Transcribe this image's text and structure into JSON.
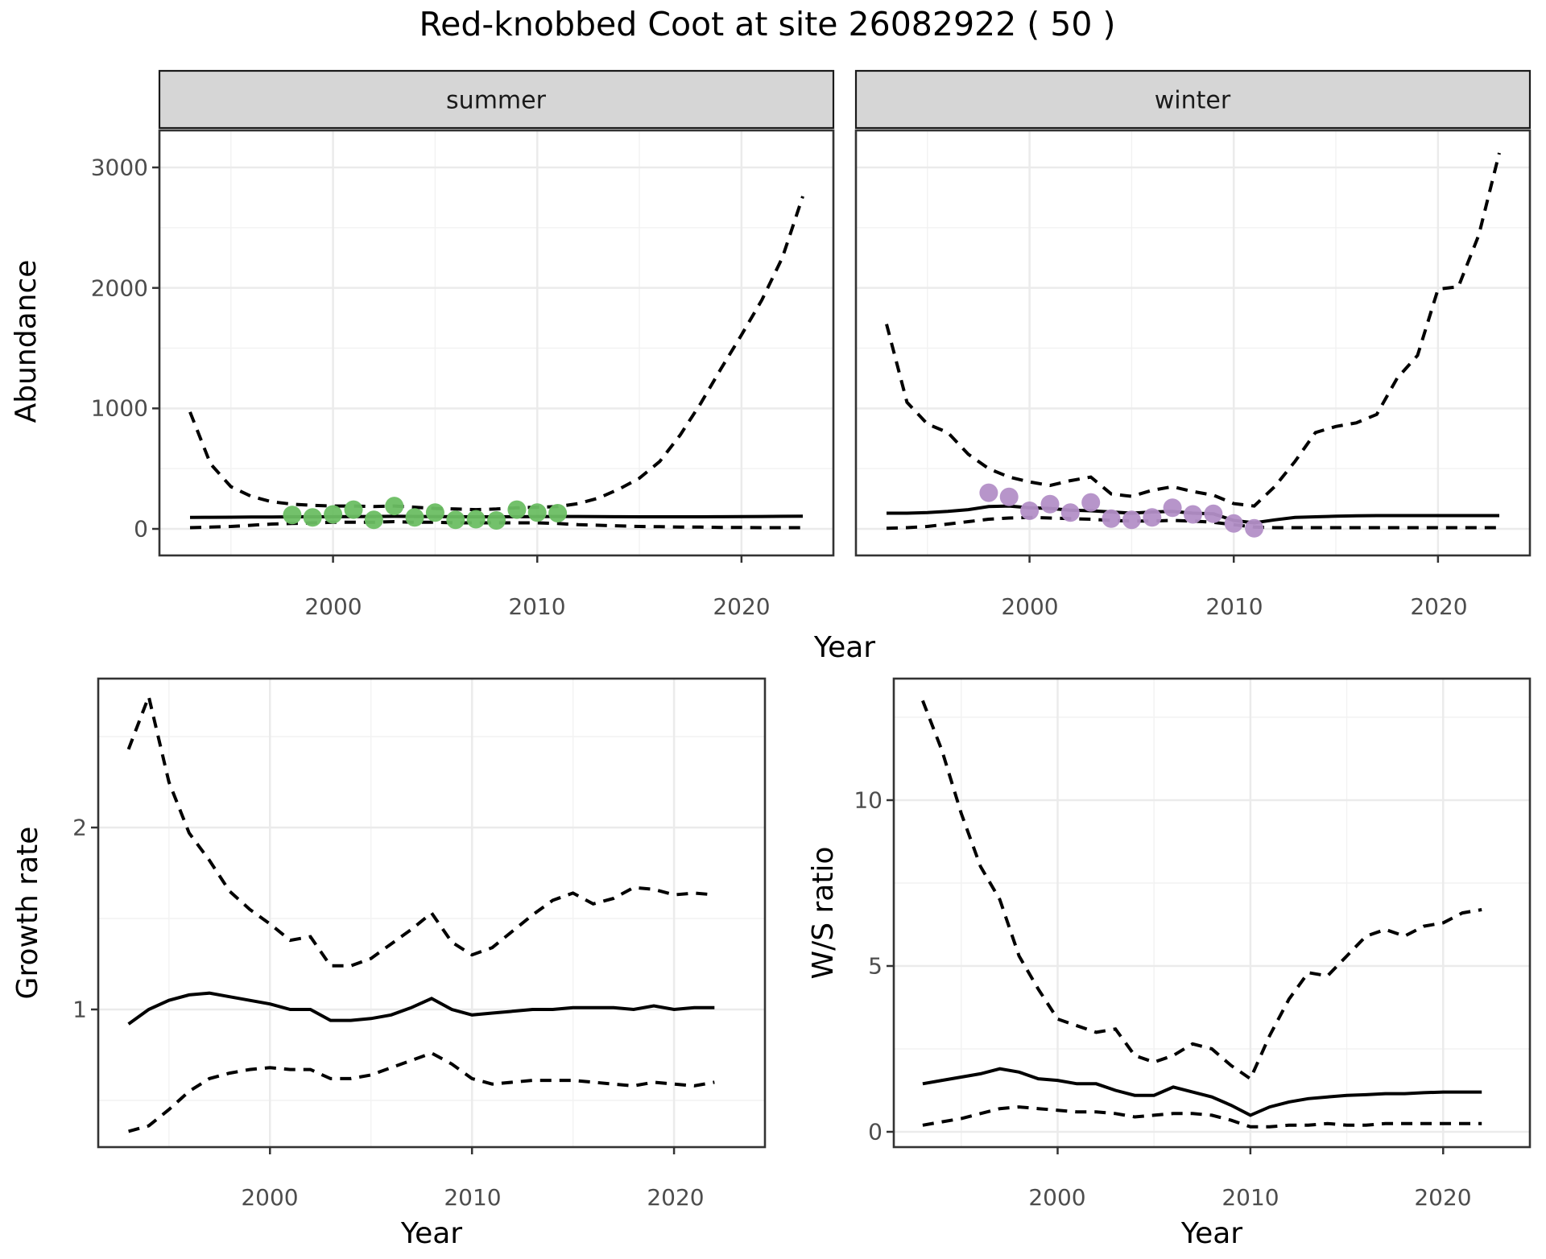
{
  "title": "Red-knobbed Coot at site 26082922 ( 50 )",
  "labels": {
    "abundance": "Abundance",
    "year": "Year",
    "growth_rate": "Growth rate",
    "ws_ratio": "W/S ratio"
  },
  "facets": {
    "summer": "summer",
    "winter": "winter"
  },
  "ticks": {
    "abundance_y": [
      "3000",
      "2000",
      "1000",
      "0"
    ],
    "top_x": [
      "2000",
      "2010",
      "2020"
    ],
    "growth_y": [
      "2",
      "1"
    ],
    "ws_y": [
      "10",
      "5",
      "0"
    ],
    "bottom_x": [
      "2000",
      "2010",
      "2020"
    ]
  },
  "colors": {
    "summer_points": "#6BBE63",
    "winter_points": "#B38FC7",
    "line": "#000000",
    "grid_major": "#EBEBEB",
    "grid_minor": "#F2F2F2",
    "panel_fill": "#FFFFFF",
    "panel_border": "#333333",
    "strip_fill": "#D6D6D6",
    "strip_border": "#1A1A1A",
    "tick_mark": "#333333",
    "tick_label": "#4D4D4D"
  },
  "chart_data": [
    {
      "type": "line",
      "facet": "summer",
      "xlabel": "Year",
      "ylabel": "Abundance",
      "xlim": [
        1991.5,
        2024.5
      ],
      "ylim": [
        -150,
        3300
      ],
      "grid": true,
      "x": [
        1993,
        1994,
        1995,
        1996,
        1997,
        1998,
        1999,
        2000,
        2001,
        2002,
        2003,
        2004,
        2005,
        2006,
        2007,
        2008,
        2009,
        2010,
        2011,
        2012,
        2013,
        2014,
        2015,
        2016,
        2017,
        2018,
        2019,
        2020,
        2021,
        2022,
        2023
      ],
      "series": [
        {
          "name": "upper_ci",
          "style": "dashed",
          "values": [
            970,
            540,
            350,
            270,
            225,
            205,
            195,
            190,
            190,
            185,
            190,
            180,
            170,
            165,
            160,
            165,
            175,
            180,
            185,
            210,
            255,
            330,
            420,
            560,
            780,
            1040,
            1330,
            1610,
            1900,
            2250,
            2760
          ]
        },
        {
          "name": "fit",
          "style": "solid",
          "values": [
            95,
            96,
            97,
            98,
            99,
            100,
            100,
            101,
            102,
            103,
            104,
            103,
            102,
            101,
            100,
            100,
            101,
            102,
            103,
            103,
            102,
            101,
            100,
            100,
            100,
            100,
            101,
            102,
            103,
            104,
            105
          ]
        },
        {
          "name": "lower_ci",
          "style": "dashed",
          "values": [
            10,
            15,
            20,
            30,
            40,
            45,
            50,
            55,
            55,
            55,
            60,
            55,
            55,
            50,
            50,
            50,
            50,
            50,
            45,
            35,
            30,
            25,
            20,
            18,
            15,
            15,
            12,
            12,
            10,
            10,
            10
          ]
        }
      ],
      "points": {
        "name": "observed-counts-summer",
        "color": "#6BBE63",
        "x": [
          1998,
          1999,
          2000,
          2001,
          2002,
          2003,
          2004,
          2005,
          2006,
          2007,
          2008,
          2009,
          2010,
          2011
        ],
        "values": [
          115,
          95,
          120,
          160,
          75,
          190,
          95,
          135,
          75,
          80,
          70,
          160,
          135,
          130
        ]
      }
    },
    {
      "type": "line",
      "facet": "winter",
      "xlabel": "Year",
      "ylabel": "Abundance",
      "xlim": [
        1991.5,
        2024.5
      ],
      "ylim": [
        -150,
        3300
      ],
      "grid": true,
      "x": [
        1993,
        1994,
        1995,
        1996,
        1997,
        1998,
        1999,
        2000,
        2001,
        2002,
        2003,
        2004,
        2005,
        2006,
        2007,
        2008,
        2009,
        2010,
        2011,
        2012,
        2013,
        2014,
        2015,
        2016,
        2017,
        2018,
        2019,
        2020,
        2021,
        2022,
        2023
      ],
      "series": [
        {
          "name": "upper_ci",
          "style": "dashed",
          "values": [
            1700,
            1050,
            870,
            800,
            620,
            500,
            430,
            390,
            360,
            400,
            430,
            290,
            270,
            320,
            350,
            310,
            280,
            210,
            190,
            350,
            560,
            800,
            850,
            880,
            950,
            1250,
            1440,
            1990,
            2010,
            2440,
            3120
          ]
        },
        {
          "name": "fit",
          "style": "solid",
          "values": [
            130,
            130,
            135,
            145,
            160,
            185,
            190,
            175,
            170,
            155,
            150,
            140,
            130,
            140,
            145,
            130,
            125,
            70,
            50,
            75,
            95,
            100,
            105,
            108,
            110,
            110,
            110,
            110,
            110,
            110,
            110
          ]
        },
        {
          "name": "lower_ci",
          "style": "dashed",
          "values": [
            5,
            10,
            20,
            40,
            60,
            80,
            90,
            95,
            90,
            85,
            80,
            70,
            65,
            65,
            70,
            65,
            55,
            35,
            15,
            10,
            10,
            10,
            10,
            10,
            10,
            10,
            10,
            10,
            10,
            10,
            10
          ]
        }
      ],
      "points": {
        "name": "observed-counts-winter",
        "color": "#B38FC7",
        "x": [
          1998,
          1999,
          2000,
          2001,
          2002,
          2003,
          2004,
          2005,
          2006,
          2007,
          2008,
          2009,
          2010,
          2011
        ],
        "values": [
          300,
          265,
          150,
          205,
          135,
          220,
          85,
          75,
          95,
          175,
          120,
          125,
          45,
          5
        ]
      }
    },
    {
      "type": "line",
      "title": "Growth rate",
      "xlabel": "Year",
      "ylabel": "Growth rate",
      "xlim": [
        1991.5,
        2024.5
      ],
      "ylim": [
        0.25,
        2.8
      ],
      "grid": true,
      "x": [
        1993,
        1994,
        1995,
        1996,
        1997,
        1998,
        1999,
        2000,
        2001,
        2002,
        2003,
        2004,
        2005,
        2006,
        2007,
        2008,
        2009,
        2010,
        2011,
        2012,
        2013,
        2014,
        2015,
        2016,
        2017,
        2018,
        2019,
        2020,
        2021,
        2022
      ],
      "series": [
        {
          "name": "upper_ci",
          "style": "dashed",
          "values": [
            2.43,
            2.72,
            2.25,
            1.97,
            1.82,
            1.65,
            1.55,
            1.47,
            1.38,
            1.4,
            1.24,
            1.24,
            1.28,
            1.36,
            1.44,
            1.53,
            1.37,
            1.3,
            1.34,
            1.43,
            1.52,
            1.6,
            1.64,
            1.58,
            1.61,
            1.67,
            1.66,
            1.63,
            1.64,
            1.63
          ]
        },
        {
          "name": "fit",
          "style": "solid",
          "values": [
            0.92,
            1.0,
            1.05,
            1.08,
            1.09,
            1.07,
            1.05,
            1.03,
            1.0,
            1.0,
            0.94,
            0.94,
            0.95,
            0.97,
            1.01,
            1.06,
            1.0,
            0.97,
            0.98,
            0.99,
            1.0,
            1.0,
            1.01,
            1.01,
            1.01,
            1.0,
            1.02,
            1.0,
            1.01,
            1.01
          ]
        },
        {
          "name": "lower_ci",
          "style": "dashed",
          "values": [
            0.33,
            0.36,
            0.45,
            0.55,
            0.62,
            0.65,
            0.67,
            0.68,
            0.67,
            0.67,
            0.62,
            0.62,
            0.64,
            0.68,
            0.72,
            0.76,
            0.7,
            0.62,
            0.59,
            0.6,
            0.61,
            0.61,
            0.61,
            0.6,
            0.59,
            0.58,
            0.6,
            0.59,
            0.58,
            0.6
          ]
        }
      ]
    },
    {
      "type": "line",
      "title": "W/S ratio",
      "xlabel": "Year",
      "ylabel": "W/S ratio",
      "xlim": [
        1991.5,
        2024.5
      ],
      "ylim": [
        -0.5,
        13.7
      ],
      "grid": true,
      "x": [
        1993,
        1994,
        1995,
        1996,
        1997,
        1998,
        1999,
        2000,
        2001,
        2002,
        2003,
        2004,
        2005,
        2006,
        2007,
        2008,
        2009,
        2010,
        2011,
        2012,
        2013,
        2014,
        2015,
        2016,
        2017,
        2018,
        2019,
        2020,
        2021,
        2022
      ],
      "series": [
        {
          "name": "upper_ci",
          "style": "dashed",
          "values": [
            13.0,
            11.5,
            9.6,
            8.0,
            7.0,
            5.3,
            4.3,
            3.4,
            3.2,
            3.0,
            3.1,
            2.3,
            2.1,
            2.3,
            2.65,
            2.5,
            2.0,
            1.6,
            2.9,
            4.0,
            4.8,
            4.7,
            5.3,
            5.9,
            6.1,
            5.9,
            6.2,
            6.3,
            6.6,
            6.7
          ]
        },
        {
          "name": "fit",
          "style": "solid",
          "values": [
            1.45,
            1.55,
            1.65,
            1.75,
            1.9,
            1.8,
            1.6,
            1.55,
            1.45,
            1.45,
            1.25,
            1.1,
            1.1,
            1.35,
            1.2,
            1.05,
            0.8,
            0.5,
            0.75,
            0.9,
            1.0,
            1.05,
            1.1,
            1.12,
            1.15,
            1.15,
            1.18,
            1.2,
            1.2,
            1.2
          ]
        },
        {
          "name": "lower_ci",
          "style": "dashed",
          "values": [
            0.2,
            0.3,
            0.4,
            0.55,
            0.7,
            0.75,
            0.7,
            0.65,
            0.6,
            0.6,
            0.55,
            0.45,
            0.5,
            0.55,
            0.55,
            0.5,
            0.35,
            0.15,
            0.15,
            0.2,
            0.2,
            0.25,
            0.2,
            0.2,
            0.25,
            0.25,
            0.25,
            0.25,
            0.25,
            0.25
          ]
        }
      ]
    }
  ]
}
